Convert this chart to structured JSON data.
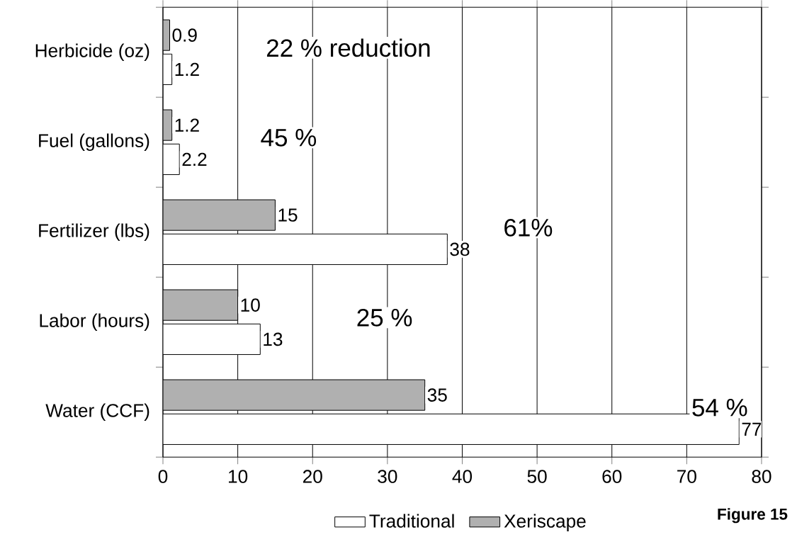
{
  "chart_data": {
    "type": "bar",
    "orientation": "horizontal",
    "categories": [
      "Herbicide (oz)",
      "Fuel (gallons)",
      "Fertilizer (lbs)",
      "Labor (hours)",
      "Water  (CCF)"
    ],
    "series": [
      {
        "name": "Traditional",
        "color": "#ffffff",
        "values": [
          1.2,
          2.2,
          38,
          13,
          77
        ]
      },
      {
        "name": "Xeriscape",
        "color": "#b0b0b0",
        "values": [
          0.9,
          1.2,
          15,
          10,
          35
        ]
      }
    ],
    "xlim": [
      0,
      80
    ],
    "xticks": [
      0,
      10,
      20,
      30,
      40,
      50,
      60,
      70,
      80
    ],
    "grid": "x",
    "legend": "bottom",
    "data_labels": true,
    "annotations": [
      "22 % reduction",
      "45 %",
      "61%",
      "25 %",
      "54 %",
      "Figure 15"
    ]
  }
}
